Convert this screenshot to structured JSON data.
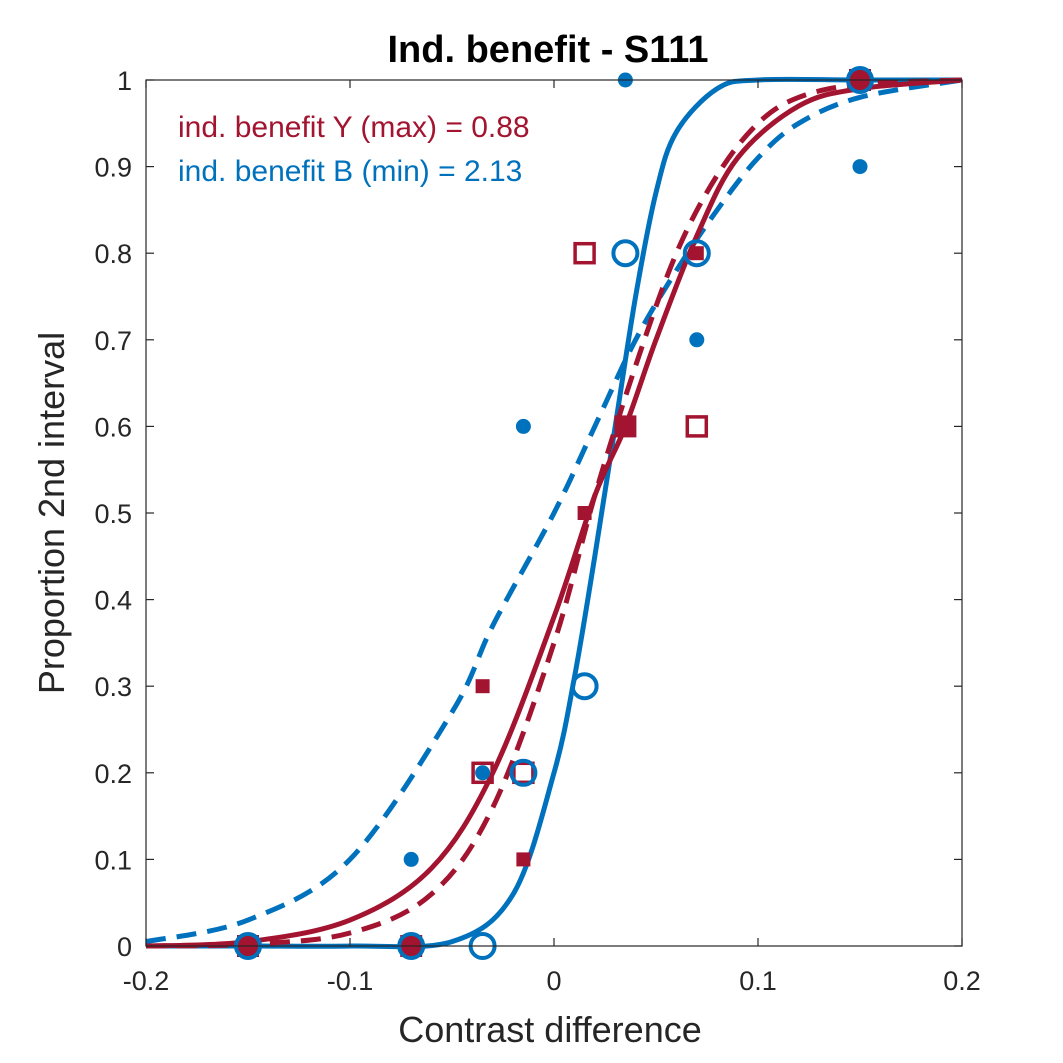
{
  "chart_data": {
    "type": "scatter",
    "title": "Ind. benefit - S111",
    "xlabel": "Contrast difference",
    "ylabel": "Proportion 2nd interval",
    "xlim": [
      -0.2,
      0.2
    ],
    "ylim": [
      0,
      1
    ],
    "xticks": [
      -0.2,
      -0.1,
      0,
      0.1,
      0.2
    ],
    "xtick_labels": [
      "-0.2",
      "-0.1",
      "0",
      "0.1",
      "0.2"
    ],
    "yticks": [
      0,
      0.1,
      0.2,
      0.3,
      0.4,
      0.5,
      0.6,
      0.7,
      0.8,
      0.9,
      1
    ],
    "ytick_labels": [
      "0",
      "0.1",
      "0.2",
      "0.3",
      "0.4",
      "0.5",
      "0.6",
      "0.7",
      "0.8",
      "0.9",
      "1"
    ],
    "grid": false,
    "colors": {
      "red": "#A2142F",
      "blue": "#0072BD",
      "axis": "#262626"
    },
    "annotations": [
      {
        "text": "ind. benefit Y (max) = 0.88",
        "color": "red"
      },
      {
        "text": "ind. benefit B (min) = 2.13",
        "color": "blue"
      }
    ],
    "series": [
      {
        "marker": "square-filled-large",
        "color": "red",
        "x": [
          -0.15,
          -0.07,
          0.035,
          0.15
        ],
        "y": [
          0,
          0,
          0.6,
          1
        ]
      },
      {
        "marker": "square-open",
        "color": "red",
        "x": [
          -0.035,
          -0.015,
          0.015,
          0.07
        ],
        "y": [
          0.2,
          0.2,
          0.8,
          0.6
        ]
      },
      {
        "marker": "square-filled-small",
        "color": "red",
        "x": [
          -0.035,
          -0.015,
          0.015,
          0.07
        ],
        "y": [
          0.3,
          0.1,
          0.5,
          0.8
        ]
      },
      {
        "marker": "circle-open",
        "color": "blue",
        "x": [
          -0.15,
          -0.07,
          -0.035,
          -0.015,
          0.015,
          0.035,
          0.07,
          0.15
        ],
        "y": [
          0,
          0,
          0,
          0.2,
          0.3,
          0.8,
          0.8,
          1
        ]
      },
      {
        "marker": "circle-filled-small",
        "color": "blue",
        "x": [
          -0.07,
          -0.035,
          -0.015,
          0.035,
          0.07,
          0.15
        ],
        "y": [
          0.1,
          0.2,
          0.6,
          1,
          0.7,
          0.9
        ]
      }
    ],
    "curves": [
      {
        "style": "solid",
        "color": "blue",
        "x": [
          -0.2,
          -0.15,
          -0.1,
          -0.05,
          -0.02,
          0,
          0.01,
          0.02,
          0.03,
          0.04,
          0.05,
          0.06,
          0.08,
          0.1,
          0.15,
          0.2
        ],
        "y": [
          0,
          0,
          0,
          0.005,
          0.06,
          0.2,
          0.31,
          0.45,
          0.6,
          0.75,
          0.87,
          0.94,
          0.99,
          1,
          1,
          1
        ]
      },
      {
        "style": "dashed",
        "color": "blue",
        "x": [
          -0.2,
          -0.15,
          -0.1,
          -0.05,
          -0.03,
          0,
          0.02,
          0.04,
          0.06,
          0.08,
          0.1,
          0.12,
          0.15,
          0.2
        ],
        "y": [
          0.005,
          0.03,
          0.1,
          0.27,
          0.37,
          0.5,
          0.6,
          0.7,
          0.78,
          0.85,
          0.91,
          0.95,
          0.98,
          1
        ]
      },
      {
        "style": "solid",
        "color": "red",
        "x": [
          -0.2,
          -0.15,
          -0.1,
          -0.06,
          -0.03,
          0,
          0.02,
          0.035,
          0.05,
          0.07,
          0.09,
          0.12,
          0.15,
          0.2
        ],
        "y": [
          0,
          0.005,
          0.03,
          0.09,
          0.2,
          0.38,
          0.52,
          0.6,
          0.7,
          0.82,
          0.91,
          0.97,
          0.99,
          1
        ]
      },
      {
        "style": "dashed",
        "color": "red",
        "x": [
          -0.2,
          -0.15,
          -0.1,
          -0.06,
          -0.03,
          0,
          0.02,
          0.04,
          0.06,
          0.08,
          0.1,
          0.12,
          0.15,
          0.2
        ],
        "y": [
          0,
          0.002,
          0.015,
          0.06,
          0.16,
          0.35,
          0.52,
          0.67,
          0.8,
          0.89,
          0.95,
          0.98,
          0.995,
          1
        ]
      }
    ]
  }
}
